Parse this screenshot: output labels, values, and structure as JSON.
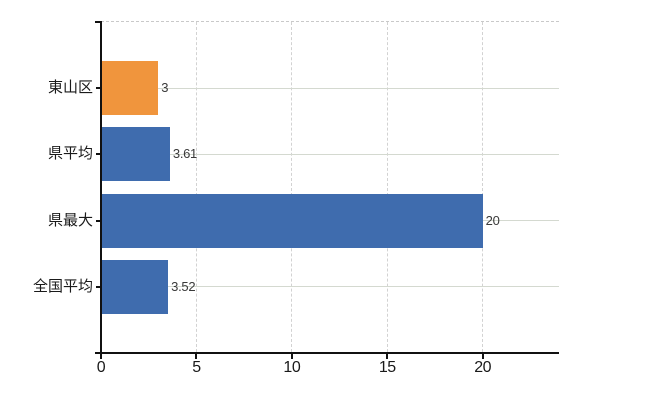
{
  "chart_data": {
    "type": "bar",
    "orientation": "horizontal",
    "title": "",
    "xlabel": "",
    "ylabel": "",
    "categories": [
      "東山区",
      "県平均",
      "県最大",
      "全国平均"
    ],
    "values": [
      3,
      3.61,
      20,
      3.52
    ],
    "value_labels": [
      "3",
      "3.61",
      "20",
      "3.52"
    ],
    "bar_colors": [
      "#f0953d",
      "#3f6cae",
      "#3f6cae",
      "#3f6cae"
    ],
    "x_ticks": [
      0,
      5,
      10,
      15,
      20
    ],
    "x_tick_labels": [
      "0",
      "5",
      "10",
      "15",
      "20"
    ],
    "xlim": [
      0,
      24
    ],
    "legend": "none",
    "grid": {
      "vertical": "dashed",
      "horizontal": "solid"
    },
    "background": "#ffffff"
  },
  "colors": {
    "highlight_bar": "#f0953d",
    "default_bar": "#3f6cae",
    "axis_line": "#111111",
    "vgrid": "#d2d2d2",
    "hgrid": "#d4d9d0",
    "top_border": "#c9c9c9",
    "label_text": "#1a1a1a",
    "value_text": "#3a3a3a"
  }
}
